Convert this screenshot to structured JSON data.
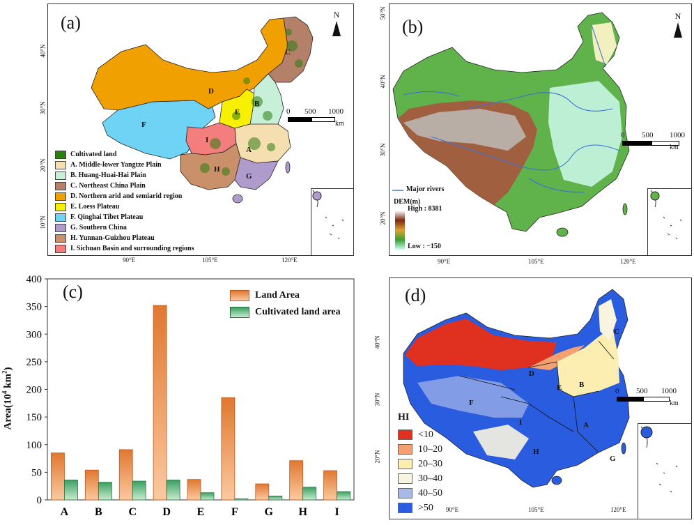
{
  "panel_a": {
    "label": "(a)",
    "north": "N",
    "scale": {
      "t0": "0",
      "t1": "500",
      "t2": "1000",
      "unit": "km"
    },
    "lat_ticks": [
      "40°N",
      "30°N",
      "20°N",
      "10°N"
    ],
    "lon_ticks": [
      "90°E",
      "105°E",
      "120°E"
    ],
    "region_letters": [
      "A",
      "B",
      "C",
      "D",
      "E",
      "F",
      "G",
      "H",
      "I"
    ],
    "legend": [
      {
        "label": "Cultivated land",
        "color": "#2e7d12"
      },
      {
        "label": "A. Middle-lower Yangtze Plain",
        "color": "#f5deb0"
      },
      {
        "label": "B. Huang-Huai-Hai Plain",
        "color": "#c8f0d8"
      },
      {
        "label": "C. Northeast China Plain",
        "color": "#b5806a"
      },
      {
        "label": "D. Northern arid and semiarid region",
        "color": "#f0a000"
      },
      {
        "label": "E. Loess Plateau",
        "color": "#f7f000"
      },
      {
        "label": "F. Qinghai Tibet Plateau",
        "color": "#6fd3f5"
      },
      {
        "label": "G. Southern China",
        "color": "#b09ccc"
      },
      {
        "label": "H. Yunnan-Guizhou Plateau",
        "color": "#c9906a"
      },
      {
        "label": "I. Sichuan Basin and surrounding regions",
        "color": "#f47d7d"
      }
    ]
  },
  "panel_b": {
    "label": "(b)",
    "north": "N",
    "scale": {
      "t0": "0",
      "t1": "500",
      "t2": "1000",
      "unit": "km"
    },
    "lat_ticks": [
      "50°N",
      "40°N",
      "30°N",
      "20°N"
    ],
    "lon_ticks": [
      "90°E",
      "105°E",
      "120°E"
    ],
    "rivers_label": "Major rivers",
    "dem_title": "DEM(m)",
    "dem_high": "High : 8381",
    "dem_low": "Low : −150",
    "river_color": "#3a6fd8"
  },
  "panel_c": {
    "label": "(c)",
    "chart_data": {
      "type": "bar",
      "categories": [
        "A",
        "B",
        "C",
        "D",
        "E",
        "F",
        "G",
        "H",
        "I"
      ],
      "series": [
        {
          "name": "Land Area",
          "values": [
            85,
            54,
            91,
            352,
            37,
            185,
            29,
            71,
            53
          ],
          "color": "#e07830"
        },
        {
          "name": "Cultivated land area",
          "values": [
            36,
            32,
            34,
            36,
            13,
            2,
            7,
            23,
            15
          ],
          "color": "#3aa060"
        }
      ],
      "ylabel_main": "Area(10",
      "ylabel_sup": "4",
      "ylabel_unit": " km",
      "ylabel_sup2": "2",
      "ylabel_close": ")",
      "ylim": [
        0,
        400
      ],
      "yticks": [
        "0",
        "50",
        "100",
        "150",
        "200",
        "250",
        "300",
        "350",
        "400"
      ],
      "yticks_values": [
        0,
        50,
        100,
        150,
        200,
        250,
        300,
        350,
        400
      ],
      "legend_position": "top-right"
    }
  },
  "panel_d": {
    "label": "(d)",
    "scale": {
      "t0": "0",
      "t1": "500",
      "t2": "1000",
      "unit": "km"
    },
    "lat_ticks": [
      "40°N",
      "30°N",
      "20°N"
    ],
    "lon_ticks": [
      "90°E",
      "105°E",
      "120°E"
    ],
    "region_letters": [
      "A",
      "B",
      "C",
      "D",
      "E",
      "F",
      "G",
      "H",
      "I"
    ],
    "legend_title": "HI",
    "legend": [
      {
        "label": "<10",
        "color": "#e03020"
      },
      {
        "label": "10–20",
        "color": "#f4a070"
      },
      {
        "label": "20–30",
        "color": "#fbeeb0"
      },
      {
        "label": "30–40",
        "color": "#f8f4e0"
      },
      {
        "label": "40–50",
        "color": "#a8b8e8"
      },
      {
        "label": ">50",
        "color": "#2a5ce0"
      }
    ]
  }
}
